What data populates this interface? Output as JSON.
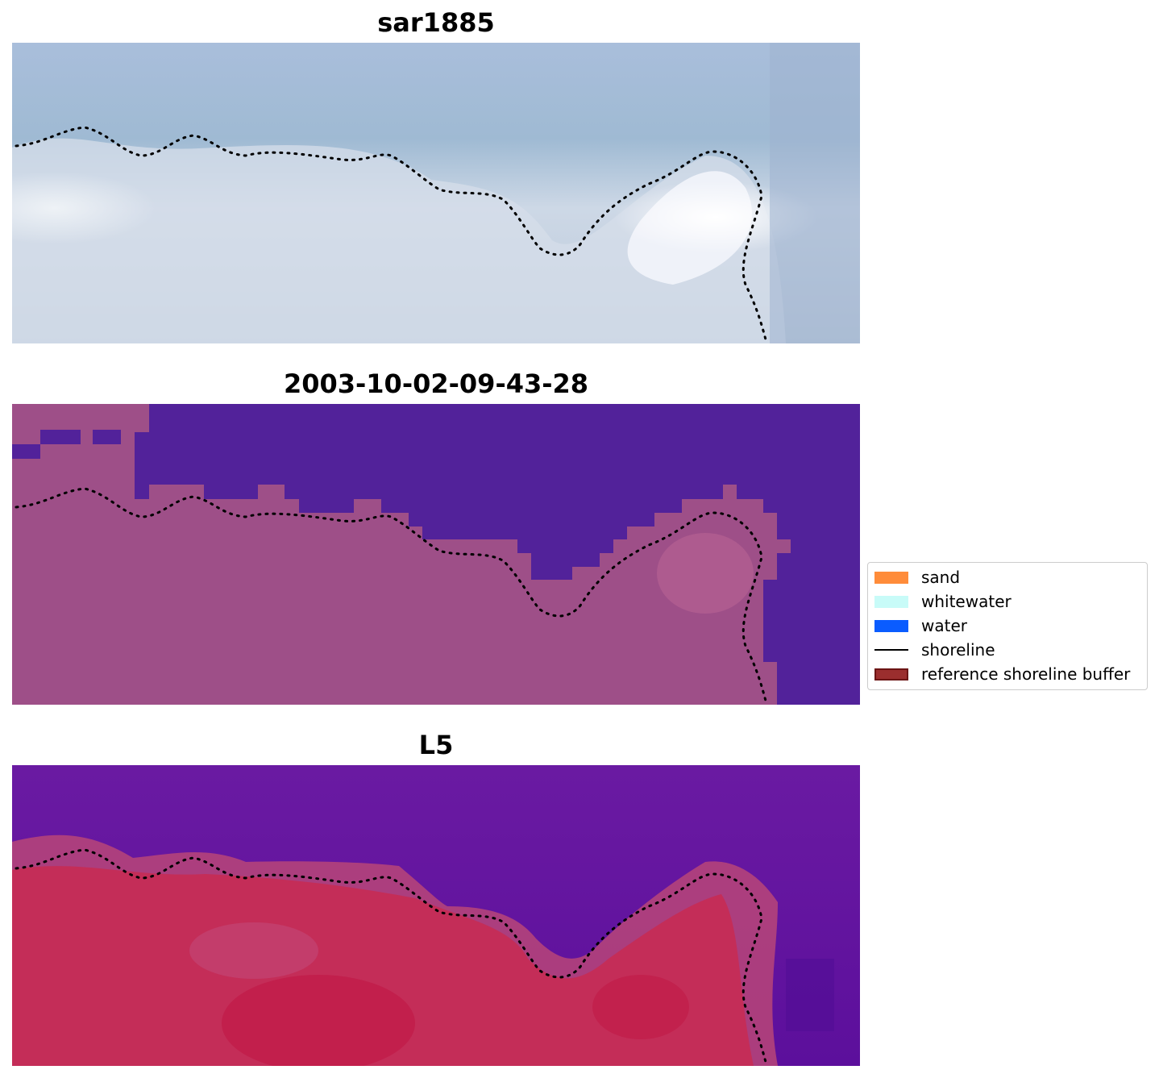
{
  "panels": [
    {
      "title": "sar1885"
    },
    {
      "title": "2003-10-02-09-43-28"
    },
    {
      "title": "L5"
    }
  ],
  "legend": {
    "items": [
      {
        "label": "sand",
        "color": "#ff8c3a",
        "kind": "patch"
      },
      {
        "label": "whitewater",
        "color": "#c8fbf8",
        "kind": "patch"
      },
      {
        "label": "water",
        "color": "#0a5cff",
        "kind": "patch"
      },
      {
        "label": "shoreline",
        "color": "#000000",
        "kind": "line"
      },
      {
        "label": "reference shoreline buffer",
        "color": "#9b2e2e",
        "kind": "patch-edged"
      }
    ]
  },
  "colors": {
    "sar_sky": "#a6bcd6",
    "sar_foam": "#e9edf5",
    "class_water": "#52229a",
    "class_land": "#9e4f88",
    "index_water": "#5b0f9e",
    "index_land": "#c22a55"
  }
}
